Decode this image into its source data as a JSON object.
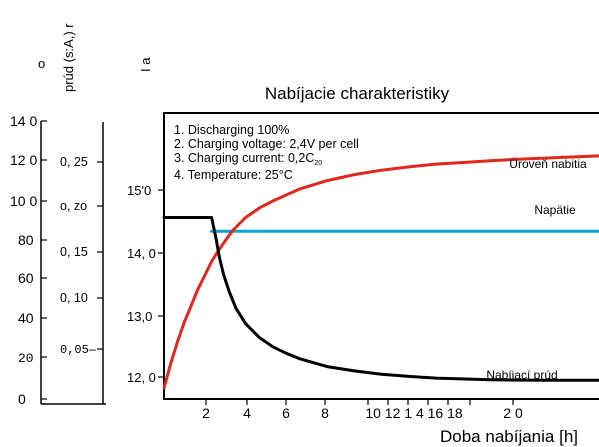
{
  "chart_data": {
    "type": "line",
    "title": "Nabíjacie charakteristiky",
    "xlabel": "Doba nabíjania [h]",
    "x_tick_labels": [
      "2",
      "4",
      "6",
      "8",
      "10 12 1 4 16 18",
      "2 0"
    ],
    "xlim": [
      0,
      32
    ],
    "ylim": [
      11.5,
      16.7
    ],
    "axis_titles": {
      "charge_level": "o",
      "current": "prúd (s:A,) r",
      "voltage": "I a"
    },
    "y_axes": {
      "charge_level": [
        "14 0",
        "12 0",
        "10 0",
        "80",
        "60",
        "40",
        "20",
        "0"
      ],
      "current": [
        "0, 25",
        "o, zo",
        "0, 15",
        "0, 10",
        "0,05—"
      ],
      "voltage": [
        "15'0",
        "14, 0",
        "13,0",
        "12, 0"
      ]
    },
    "conditions": [
      "1. Discharging 100%",
      "2. Charging voltage: 2,4V per cell",
      "3. Charging current: 0,2C",
      "4. Temperature: 25°C"
    ],
    "conditions_subscript": "20",
    "series": [
      {
        "name": "Úroveň nabitia",
        "color": "#e0281e",
        "x": [
          0,
          0.5,
          1,
          1.5,
          2,
          2.5,
          3,
          3.5,
          4,
          5,
          6,
          7,
          8,
          10,
          12,
          14,
          16,
          18,
          20,
          22,
          24,
          26,
          28,
          30,
          32
        ],
        "y": [
          11.7,
          12.15,
          12.55,
          12.9,
          13.2,
          13.5,
          13.75,
          14.0,
          14.2,
          14.55,
          14.8,
          14.97,
          15.1,
          15.32,
          15.47,
          15.58,
          15.66,
          15.72,
          15.77,
          15.8,
          15.83,
          15.86,
          15.88,
          15.9,
          15.92
        ]
      },
      {
        "name": "Napätie",
        "color": "#0aa3d4",
        "x": [
          3.5,
          32
        ],
        "y": [
          14.55,
          14.55
        ]
      },
      {
        "name": "Nabíjací prúd",
        "color": "#000000",
        "x": [
          0,
          3.5,
          3.8,
          4.1,
          4.4,
          4.8,
          5.3,
          6,
          7,
          8,
          9,
          10,
          12,
          14,
          16,
          18,
          20,
          24,
          28,
          32
        ],
        "y": [
          14.8,
          14.8,
          14.45,
          14.05,
          13.75,
          13.45,
          13.15,
          12.87,
          12.62,
          12.45,
          12.33,
          12.23,
          12.09,
          12.01,
          11.95,
          11.91,
          11.88,
          11.85,
          11.84,
          11.84
        ]
      }
    ],
    "grid": false
  }
}
